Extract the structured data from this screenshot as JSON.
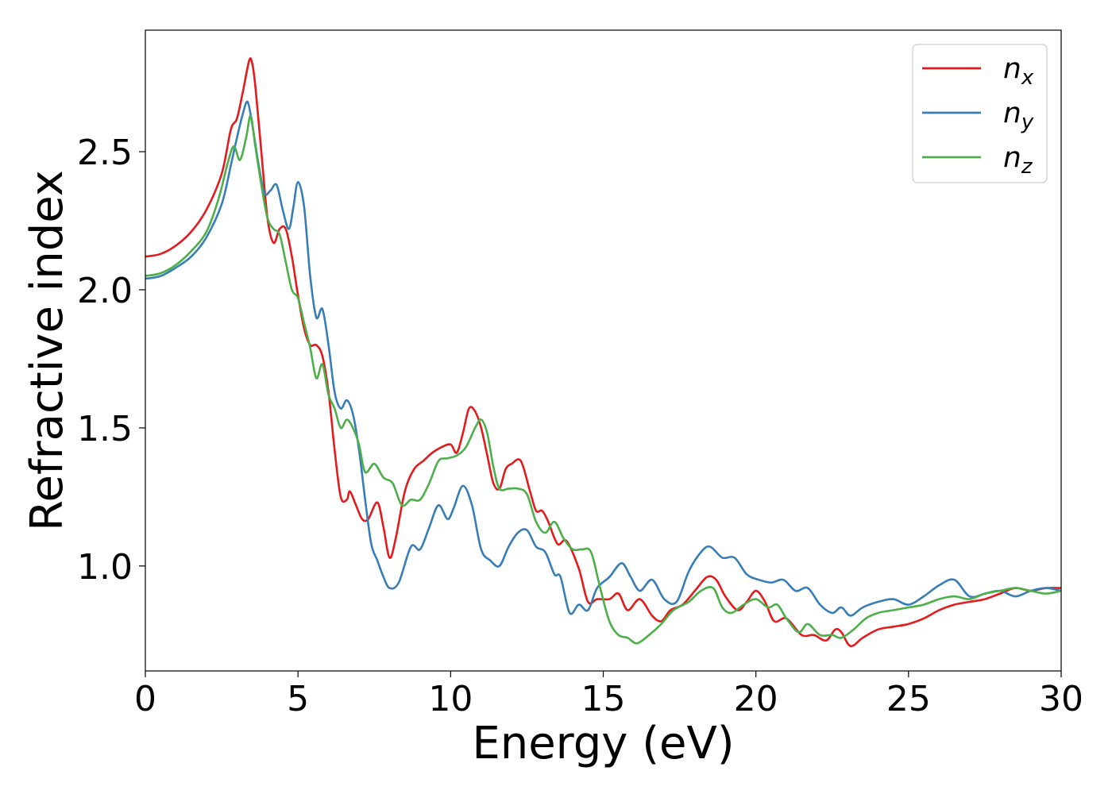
{
  "chart_data": {
    "type": "line",
    "xlabel": "Energy (eV)",
    "ylabel": "Refractive index",
    "xlim": [
      0,
      30
    ],
    "ylim": [
      0.62,
      2.94
    ],
    "x_ticks": [
      0,
      5,
      10,
      15,
      20,
      25,
      30
    ],
    "x_tick_labels": [
      "0",
      "5",
      "10",
      "15",
      "20",
      "25",
      "30"
    ],
    "y_ticks": [
      1.0,
      1.5,
      2.0,
      2.5
    ],
    "y_tick_labels": [
      "1.0",
      "1.5",
      "2.0",
      "2.5"
    ],
    "grid": false,
    "legend_position": "top-right",
    "series": [
      {
        "name": "n",
        "subscript": "x",
        "color": "#e41a1c",
        "points": [
          [
            0,
            2.12
          ],
          [
            0.5,
            2.13
          ],
          [
            1.0,
            2.16
          ],
          [
            1.5,
            2.21
          ],
          [
            2.0,
            2.29
          ],
          [
            2.5,
            2.42
          ],
          [
            2.8,
            2.58
          ],
          [
            3.0,
            2.62
          ],
          [
            3.2,
            2.72
          ],
          [
            3.4,
            2.83
          ],
          [
            3.5,
            2.82
          ],
          [
            3.6,
            2.74
          ],
          [
            3.8,
            2.5
          ],
          [
            4.0,
            2.26
          ],
          [
            4.2,
            2.17
          ],
          [
            4.4,
            2.22
          ],
          [
            4.6,
            2.22
          ],
          [
            4.8,
            2.12
          ],
          [
            5.0,
            1.98
          ],
          [
            5.2,
            1.86
          ],
          [
            5.4,
            1.8
          ],
          [
            5.6,
            1.8
          ],
          [
            5.8,
            1.76
          ],
          [
            6.0,
            1.63
          ],
          [
            6.2,
            1.42
          ],
          [
            6.4,
            1.25
          ],
          [
            6.6,
            1.24
          ],
          [
            6.7,
            1.27
          ],
          [
            6.9,
            1.22
          ],
          [
            7.1,
            1.17
          ],
          [
            7.3,
            1.17
          ],
          [
            7.6,
            1.23
          ],
          [
            7.8,
            1.14
          ],
          [
            8.0,
            1.03
          ],
          [
            8.2,
            1.1
          ],
          [
            8.5,
            1.27
          ],
          [
            8.8,
            1.35
          ],
          [
            9.1,
            1.38
          ],
          [
            9.4,
            1.41
          ],
          [
            9.7,
            1.43
          ],
          [
            10.0,
            1.44
          ],
          [
            10.2,
            1.41
          ],
          [
            10.4,
            1.48
          ],
          [
            10.6,
            1.57
          ],
          [
            10.8,
            1.56
          ],
          [
            11.0,
            1.5
          ],
          [
            11.2,
            1.4
          ],
          [
            11.4,
            1.3
          ],
          [
            11.6,
            1.28
          ],
          [
            11.8,
            1.35
          ],
          [
            12.0,
            1.37
          ],
          [
            12.3,
            1.38
          ],
          [
            12.6,
            1.27
          ],
          [
            12.8,
            1.2
          ],
          [
            13.0,
            1.2
          ],
          [
            13.2,
            1.16
          ],
          [
            13.5,
            1.08
          ],
          [
            13.8,
            1.09
          ],
          [
            14.2,
            0.99
          ],
          [
            14.5,
            0.87
          ],
          [
            14.8,
            0.88
          ],
          [
            15.2,
            0.88
          ],
          [
            15.5,
            0.9
          ],
          [
            15.8,
            0.84
          ],
          [
            16.2,
            0.88
          ],
          [
            16.6,
            0.82
          ],
          [
            16.9,
            0.8
          ],
          [
            17.2,
            0.84
          ],
          [
            17.6,
            0.86
          ],
          [
            18.0,
            0.91
          ],
          [
            18.4,
            0.96
          ],
          [
            18.7,
            0.95
          ],
          [
            19.0,
            0.89
          ],
          [
            19.4,
            0.84
          ],
          [
            19.7,
            0.87
          ],
          [
            20.0,
            0.91
          ],
          [
            20.3,
            0.87
          ],
          [
            20.6,
            0.8
          ],
          [
            21.0,
            0.81
          ],
          [
            21.5,
            0.75
          ],
          [
            21.9,
            0.75
          ],
          [
            22.3,
            0.73
          ],
          [
            22.6,
            0.77
          ],
          [
            22.8,
            0.76
          ],
          [
            23.1,
            0.71
          ],
          [
            23.5,
            0.74
          ],
          [
            24.0,
            0.77
          ],
          [
            24.5,
            0.78
          ],
          [
            25.0,
            0.79
          ],
          [
            25.5,
            0.81
          ],
          [
            26.0,
            0.84
          ],
          [
            26.5,
            0.86
          ],
          [
            27.0,
            0.87
          ],
          [
            27.5,
            0.88
          ],
          [
            28.0,
            0.9
          ],
          [
            28.5,
            0.92
          ],
          [
            29.0,
            0.91
          ],
          [
            29.5,
            0.92
          ],
          [
            30.0,
            0.92
          ]
        ]
      },
      {
        "name": "n",
        "subscript": "y",
        "color": "#377eb8",
        "points": [
          [
            0,
            2.04
          ],
          [
            0.5,
            2.05
          ],
          [
            1.0,
            2.08
          ],
          [
            1.5,
            2.12
          ],
          [
            2.0,
            2.19
          ],
          [
            2.5,
            2.31
          ],
          [
            2.8,
            2.45
          ],
          [
            3.0,
            2.55
          ],
          [
            3.2,
            2.64
          ],
          [
            3.35,
            2.68
          ],
          [
            3.5,
            2.6
          ],
          [
            3.7,
            2.46
          ],
          [
            3.9,
            2.35
          ],
          [
            4.1,
            2.36
          ],
          [
            4.3,
            2.38
          ],
          [
            4.5,
            2.29
          ],
          [
            4.7,
            2.22
          ],
          [
            4.85,
            2.3
          ],
          [
            5.0,
            2.39
          ],
          [
            5.2,
            2.3
          ],
          [
            5.4,
            2.05
          ],
          [
            5.6,
            1.9
          ],
          [
            5.8,
            1.93
          ],
          [
            6.0,
            1.8
          ],
          [
            6.2,
            1.63
          ],
          [
            6.4,
            1.57
          ],
          [
            6.6,
            1.6
          ],
          [
            6.8,
            1.55
          ],
          [
            7.0,
            1.42
          ],
          [
            7.2,
            1.24
          ],
          [
            7.4,
            1.08
          ],
          [
            7.6,
            1.02
          ],
          [
            7.8,
            0.96
          ],
          [
            8.0,
            0.92
          ],
          [
            8.3,
            0.94
          ],
          [
            8.7,
            1.07
          ],
          [
            9.0,
            1.06
          ],
          [
            9.3,
            1.14
          ],
          [
            9.6,
            1.22
          ],
          [
            9.9,
            1.17
          ],
          [
            10.1,
            1.21
          ],
          [
            10.4,
            1.29
          ],
          [
            10.7,
            1.22
          ],
          [
            11.0,
            1.06
          ],
          [
            11.3,
            1.02
          ],
          [
            11.6,
            1.0
          ],
          [
            11.9,
            1.07
          ],
          [
            12.2,
            1.12
          ],
          [
            12.5,
            1.13
          ],
          [
            12.8,
            1.07
          ],
          [
            13.1,
            1.05
          ],
          [
            13.4,
            0.97
          ],
          [
            13.6,
            0.96
          ],
          [
            13.9,
            0.83
          ],
          [
            14.2,
            0.86
          ],
          [
            14.5,
            0.84
          ],
          [
            14.8,
            0.92
          ],
          [
            15.2,
            0.96
          ],
          [
            15.6,
            1.01
          ],
          [
            15.9,
            0.96
          ],
          [
            16.2,
            0.91
          ],
          [
            16.6,
            0.95
          ],
          [
            17.0,
            0.88
          ],
          [
            17.4,
            0.87
          ],
          [
            17.8,
            0.98
          ],
          [
            18.2,
            1.05
          ],
          [
            18.5,
            1.07
          ],
          [
            18.9,
            1.03
          ],
          [
            19.3,
            1.03
          ],
          [
            19.7,
            0.97
          ],
          [
            20.1,
            0.95
          ],
          [
            20.5,
            0.94
          ],
          [
            20.9,
            0.95
          ],
          [
            21.3,
            0.91
          ],
          [
            21.7,
            0.92
          ],
          [
            22.1,
            0.86
          ],
          [
            22.5,
            0.83
          ],
          [
            22.8,
            0.85
          ],
          [
            23.1,
            0.82
          ],
          [
            23.5,
            0.85
          ],
          [
            24.0,
            0.87
          ],
          [
            24.5,
            0.88
          ],
          [
            25.0,
            0.86
          ],
          [
            25.5,
            0.89
          ],
          [
            26.0,
            0.93
          ],
          [
            26.5,
            0.95
          ],
          [
            27.0,
            0.89
          ],
          [
            27.5,
            0.9
          ],
          [
            28.0,
            0.91
          ],
          [
            28.5,
            0.89
          ],
          [
            29.0,
            0.91
          ],
          [
            29.5,
            0.92
          ],
          [
            30.0,
            0.91
          ]
        ]
      },
      {
        "name": "n",
        "subscript": "z",
        "color": "#4daf4a",
        "points": [
          [
            0,
            2.05
          ],
          [
            0.5,
            2.06
          ],
          [
            1.0,
            2.09
          ],
          [
            1.5,
            2.14
          ],
          [
            2.0,
            2.21
          ],
          [
            2.4,
            2.33
          ],
          [
            2.7,
            2.46
          ],
          [
            2.9,
            2.52
          ],
          [
            3.1,
            2.47
          ],
          [
            3.3,
            2.55
          ],
          [
            3.45,
            2.63
          ],
          [
            3.6,
            2.52
          ],
          [
            3.8,
            2.38
          ],
          [
            4.0,
            2.26
          ],
          [
            4.2,
            2.22
          ],
          [
            4.4,
            2.2
          ],
          [
            4.6,
            2.1
          ],
          [
            4.8,
            2.0
          ],
          [
            5.0,
            1.97
          ],
          [
            5.2,
            1.88
          ],
          [
            5.4,
            1.79
          ],
          [
            5.6,
            1.68
          ],
          [
            5.8,
            1.73
          ],
          [
            6.0,
            1.62
          ],
          [
            6.2,
            1.57
          ],
          [
            6.4,
            1.5
          ],
          [
            6.6,
            1.53
          ],
          [
            6.8,
            1.5
          ],
          [
            7.0,
            1.44
          ],
          [
            7.2,
            1.34
          ],
          [
            7.5,
            1.37
          ],
          [
            7.8,
            1.32
          ],
          [
            8.1,
            1.3
          ],
          [
            8.4,
            1.22
          ],
          [
            8.7,
            1.24
          ],
          [
            9.0,
            1.24
          ],
          [
            9.3,
            1.3
          ],
          [
            9.6,
            1.38
          ],
          [
            9.9,
            1.39
          ],
          [
            10.2,
            1.4
          ],
          [
            10.5,
            1.43
          ],
          [
            10.8,
            1.5
          ],
          [
            11.0,
            1.53
          ],
          [
            11.2,
            1.48
          ],
          [
            11.4,
            1.36
          ],
          [
            11.6,
            1.28
          ],
          [
            11.9,
            1.28
          ],
          [
            12.2,
            1.28
          ],
          [
            12.5,
            1.26
          ],
          [
            12.8,
            1.16
          ],
          [
            13.1,
            1.12
          ],
          [
            13.4,
            1.16
          ],
          [
            13.7,
            1.1
          ],
          [
            14.0,
            1.06
          ],
          [
            14.3,
            1.06
          ],
          [
            14.6,
            1.05
          ],
          [
            14.9,
            0.92
          ],
          [
            15.2,
            0.8
          ],
          [
            15.5,
            0.75
          ],
          [
            15.8,
            0.74
          ],
          [
            16.1,
            0.72
          ],
          [
            16.5,
            0.75
          ],
          [
            16.9,
            0.79
          ],
          [
            17.3,
            0.84
          ],
          [
            17.8,
            0.87
          ],
          [
            18.2,
            0.91
          ],
          [
            18.6,
            0.92
          ],
          [
            18.9,
            0.85
          ],
          [
            19.2,
            0.83
          ],
          [
            19.6,
            0.86
          ],
          [
            20.0,
            0.88
          ],
          [
            20.4,
            0.85
          ],
          [
            20.7,
            0.86
          ],
          [
            21.0,
            0.81
          ],
          [
            21.4,
            0.76
          ],
          [
            21.7,
            0.79
          ],
          [
            22.1,
            0.75
          ],
          [
            22.5,
            0.75
          ],
          [
            22.8,
            0.74
          ],
          [
            23.2,
            0.77
          ],
          [
            23.6,
            0.81
          ],
          [
            24.0,
            0.83
          ],
          [
            24.5,
            0.84
          ],
          [
            25.0,
            0.85
          ],
          [
            25.5,
            0.86
          ],
          [
            26.0,
            0.88
          ],
          [
            26.5,
            0.89
          ],
          [
            27.0,
            0.88
          ],
          [
            27.5,
            0.9
          ],
          [
            28.0,
            0.91
          ],
          [
            28.5,
            0.92
          ],
          [
            29.0,
            0.91
          ],
          [
            29.5,
            0.9
          ],
          [
            30.0,
            0.91
          ]
        ]
      }
    ]
  }
}
